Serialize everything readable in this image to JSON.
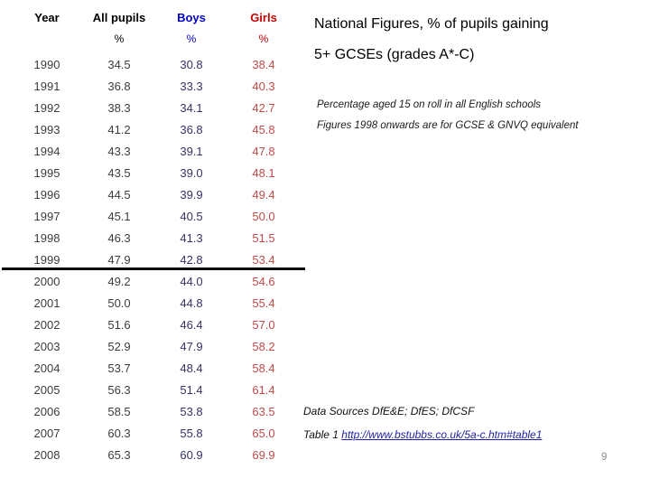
{
  "slide": {
    "title_line1": "National Figures, % of pupils gaining",
    "title_line2": "5+ GCSEs (grades A*-C)",
    "notes": {
      "note1": "Percentage aged 15 on roll in all English schools",
      "note2": "Figures 1998 onwards are for GCSE & GNVQ equivalent"
    },
    "footer": {
      "data_sources": "Data Sources DfE&E; DfES; DfCSF",
      "table_ref_label": "Table 1 ",
      "table_ref_url": "http://www.bstubbs.co.uk/5a-c.htm#table1",
      "page_number": "9"
    }
  },
  "table": {
    "headers": {
      "year": "Year",
      "all": "All pupils",
      "boys": "Boys",
      "girls": "Girls"
    },
    "units": {
      "year": "",
      "all": "%",
      "boys": "%",
      "girls": "%"
    },
    "divider_between_years": [
      "1999",
      "2000"
    ],
    "rows": [
      {
        "year": "1990",
        "all": "34.5",
        "boys": "30.8",
        "girls": "38.4"
      },
      {
        "year": "1991",
        "all": "36.8",
        "boys": "33.3",
        "girls": "40.3"
      },
      {
        "year": "1992",
        "all": "38.3",
        "boys": "34.1",
        "girls": "42.7"
      },
      {
        "year": "1993",
        "all": "41.2",
        "boys": "36.8",
        "girls": "45.8"
      },
      {
        "year": "1994",
        "all": "43.3",
        "boys": "39.1",
        "girls": "47.8"
      },
      {
        "year": "1995",
        "all": "43.5",
        "boys": "39.0",
        "girls": "48.1"
      },
      {
        "year": "1996",
        "all": "44.5",
        "boys": "39.9",
        "girls": "49.4"
      },
      {
        "year": "1997",
        "all": "45.1",
        "boys": "40.5",
        "girls": "50.0"
      },
      {
        "year": "1998",
        "all": "46.3",
        "boys": "41.3",
        "girls": "51.5"
      },
      {
        "year": "1999",
        "all": "47.9",
        "boys": "42.8",
        "girls": "53.4"
      },
      {
        "year": "2000",
        "all": "49.2",
        "boys": "44.0",
        "girls": "54.6"
      },
      {
        "year": "2001",
        "all": "50.0",
        "boys": "44.8",
        "girls": "55.4"
      },
      {
        "year": "2002",
        "all": "51.6",
        "boys": "46.4",
        "girls": "57.0"
      },
      {
        "year": "2003",
        "all": "52.9",
        "boys": "47.9",
        "girls": "58.2"
      },
      {
        "year": "2004",
        "all": "53.7",
        "boys": "48.4",
        "girls": "58.4"
      },
      {
        "year": "2005",
        "all": "56.3",
        "boys": "51.4",
        "girls": "61.4"
      },
      {
        "year": "2006",
        "all": "58.5",
        "boys": "53.8",
        "girls": "63.5"
      },
      {
        "year": "2007",
        "all": "60.3",
        "boys": "55.8",
        "girls": "65.0"
      },
      {
        "year": "2008",
        "all": "65.3",
        "boys": "60.9",
        "girls": "69.9"
      }
    ]
  },
  "colors": {
    "boys-header": "#0000C8",
    "girls-header": "#C80000",
    "year-value": "#3C3C3C",
    "boys-value": "#333366",
    "girls-value": "#C14A4A",
    "link": "#2222A8",
    "page-number": "#8C8C8C"
  }
}
